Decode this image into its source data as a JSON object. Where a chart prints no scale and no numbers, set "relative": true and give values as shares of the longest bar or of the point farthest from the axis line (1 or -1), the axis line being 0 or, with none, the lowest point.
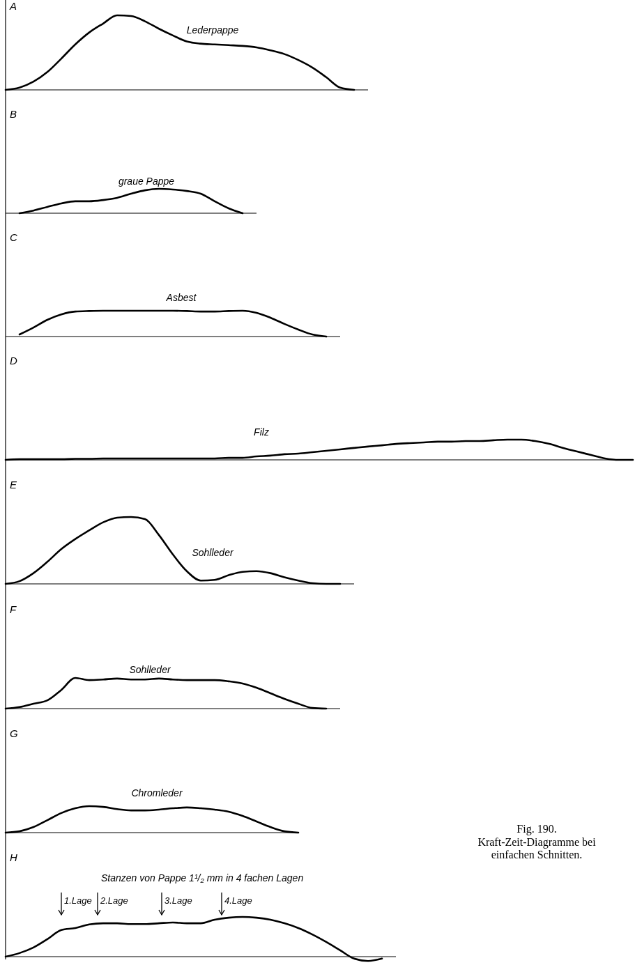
{
  "chart_data": [
    {
      "type": "line",
      "title": "A",
      "relative": true,
      "categories": [
        null,
        null,
        null,
        null,
        null,
        null,
        null,
        null,
        null,
        null,
        null,
        null,
        null,
        null,
        null,
        null,
        null,
        null,
        null,
        null,
        null,
        null,
        null,
        null,
        null,
        null,
        null
      ],
      "series": [
        {
          "name": "Lederpappe",
          "color": "#000000",
          "values": [
            0,
            0.03,
            0.11,
            0.24,
            0.42,
            0.61,
            0.77,
            0.89,
            1,
            0.99,
            0.92,
            0.82,
            0.73,
            0.65,
            0.62,
            0.61,
            0.6,
            0.59,
            0.57,
            0.53,
            0.48,
            0.4,
            0.3,
            0.17,
            0.03,
            0,
            null
          ]
        }
      ]
    },
    {
      "type": "line",
      "title": "B",
      "relative": true,
      "categories": [
        null,
        null,
        null,
        null,
        null,
        null,
        null,
        null,
        null,
        null,
        null,
        null,
        null,
        null,
        null,
        null,
        null,
        null,
        null
      ],
      "series": [
        {
          "name": "graue Pappe",
          "color": "#000000",
          "values": [
            null,
            0,
            0.11,
            0.26,
            0.4,
            0.49,
            0.49,
            0.54,
            0.63,
            0.8,
            0.94,
            1,
            0.97,
            0.91,
            0.8,
            0.49,
            0.2,
            0,
            null
          ]
        }
      ]
    },
    {
      "type": "line",
      "title": "C",
      "relative": true,
      "categories": [
        null,
        null,
        null,
        null,
        null,
        null,
        null,
        null,
        null,
        null,
        null,
        null,
        null,
        null,
        null,
        null,
        null,
        null,
        null,
        null,
        null,
        null,
        null,
        null,
        null
      ],
      "series": [
        {
          "name": "Asbest",
          "color": "#000000",
          "values": [
            null,
            0.08,
            0.35,
            0.65,
            0.86,
            0.97,
            0.99,
            1,
            1,
            1,
            1,
            1,
            1,
            0.99,
            0.97,
            0.97,
            0.99,
            1,
            0.92,
            0.73,
            0.49,
            0.27,
            0.08,
            0,
            null
          ]
        }
      ]
    },
    {
      "type": "line",
      "title": "D",
      "relative": true,
      "categories": [
        null,
        null,
        null,
        null,
        null,
        null,
        null,
        null,
        null,
        null,
        null,
        null,
        null,
        null,
        null,
        null,
        null,
        null,
        null,
        null,
        null,
        null,
        null,
        null,
        null,
        null,
        null,
        null,
        null,
        null,
        null,
        null,
        null,
        null,
        null,
        null,
        null,
        null,
        null,
        null,
        null,
        null,
        null,
        null,
        null,
        null
      ],
      "series": [
        {
          "name": "Filz",
          "color": "#000000",
          "values": [
            0,
            0.03,
            0.03,
            0.03,
            0.03,
            0.05,
            0.05,
            0.07,
            0.07,
            0.07,
            0.07,
            0.07,
            0.07,
            0.07,
            0.07,
            0.07,
            0.1,
            0.1,
            0.17,
            0.21,
            0.28,
            0.31,
            0.38,
            0.45,
            0.52,
            0.59,
            0.66,
            0.72,
            0.79,
            0.83,
            0.86,
            0.9,
            0.9,
            0.93,
            0.93,
            0.97,
            1,
            1,
            0.93,
            0.79,
            0.59,
            0.41,
            0.24,
            0.07,
            0,
            0
          ]
        }
      ]
    },
    {
      "type": "line",
      "title": "E",
      "relative": true,
      "categories": [
        null,
        null,
        null,
        null,
        null,
        null,
        null,
        null,
        null,
        null,
        null,
        null,
        null,
        null,
        null,
        null,
        null,
        null,
        null,
        null,
        null,
        null,
        null,
        null,
        null,
        null
      ],
      "series": [
        {
          "name": "Sohlleder",
          "color": "#000000",
          "values": [
            0,
            0.04,
            0.16,
            0.33,
            0.52,
            0.67,
            0.8,
            0.92,
            0.99,
            1,
            0.97,
            0.73,
            0.44,
            0.19,
            0.05,
            0.06,
            0.13,
            0.18,
            0.19,
            0.16,
            0.1,
            0.05,
            0.01,
            0,
            0,
            null
          ]
        }
      ]
    },
    {
      "type": "line",
      "title": "F",
      "relative": true,
      "categories": [
        null,
        null,
        null,
        null,
        null,
        null,
        null,
        null,
        null,
        null,
        null,
        null,
        null,
        null,
        null,
        null,
        null,
        null,
        null,
        null,
        null,
        null,
        null,
        null,
        null
      ],
      "series": [
        {
          "name": "Sohlleder",
          "color": "#000000",
          "values": [
            0,
            0.05,
            0.16,
            0.27,
            0.61,
            1,
            0.93,
            0.95,
            0.98,
            0.95,
            0.95,
            0.98,
            0.95,
            0.93,
            0.93,
            0.93,
            0.89,
            0.82,
            0.68,
            0.5,
            0.32,
            0.16,
            0.02,
            0,
            null
          ]
        }
      ]
    },
    {
      "type": "line",
      "title": "G",
      "relative": true,
      "categories": [
        null,
        null,
        null,
        null,
        null,
        null,
        null,
        null,
        null,
        null,
        null,
        null,
        null,
        null,
        null,
        null,
        null,
        null,
        null,
        null,
        null,
        null
      ],
      "series": [
        {
          "name": "Chromleder",
          "color": "#000000",
          "values": [
            0,
            0.05,
            0.21,
            0.47,
            0.74,
            0.92,
            1,
            0.97,
            0.89,
            0.84,
            0.84,
            0.87,
            0.92,
            0.95,
            0.92,
            0.87,
            0.79,
            0.63,
            0.42,
            0.21,
            0.05,
            0
          ]
        }
      ]
    },
    {
      "type": "line",
      "title": "H",
      "subtitle": "Stanzen von Pappe 1¹/₂ mm in 4 fachen Lagen",
      "relative": true,
      "categories": [
        null,
        null,
        null,
        null,
        null,
        null,
        null,
        null,
        null,
        null,
        null,
        null,
        null,
        null,
        null,
        null,
        null,
        null,
        null,
        null,
        null,
        null,
        null,
        null,
        null,
        null,
        null,
        null,
        null
      ],
      "annotations": [
        "1.Lage",
        "2.Lage",
        "3.Lage",
        "4.Lage"
      ],
      "series": [
        {
          "color": "#000000",
          "values": [
            0,
            0.09,
            0.23,
            0.44,
            0.67,
            0.72,
            0.81,
            0.84,
            0.84,
            0.82,
            0.82,
            0.84,
            0.86,
            0.84,
            0.84,
            0.93,
            0.98,
            1,
            0.98,
            0.93,
            0.84,
            0.72,
            0.56,
            0.37,
            0.16,
            -0.05,
            -0.11,
            -0.05,
            null
          ]
        }
      ]
    },
    {
      "type": "other",
      "title": "Fig. 190.",
      "subtitle": "Kraft-Zeit-Diagramme bei einfachen Schnitten."
    }
  ]
}
